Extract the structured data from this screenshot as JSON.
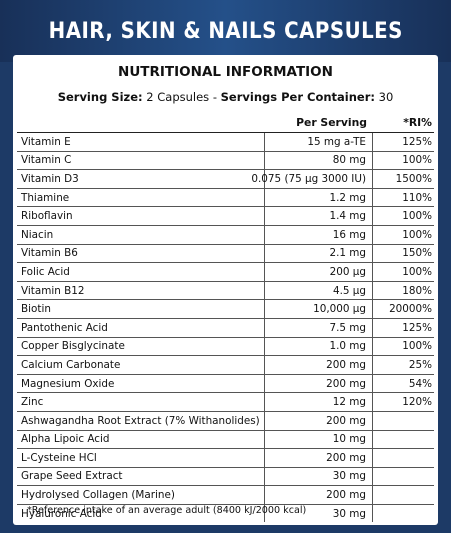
{
  "header": {
    "title": "HAIR, SKIN & NAILS CAPSULES"
  },
  "panel": {
    "title": "NUTRITIONAL INFORMATION",
    "serving": {
      "size_label": "Serving Size:",
      "size_value": " 2 Capsules - ",
      "per_container_label": "Servings Per Container:",
      "per_container_value": " 30"
    },
    "columns": {
      "name": "",
      "per_serving": "Per Serving",
      "ri": "*RI%"
    },
    "rows": [
      {
        "name": "Vitamin E",
        "value": "15 mg a-TE",
        "ri": "125%"
      },
      {
        "name": "Vitamin C",
        "value": "80 mg",
        "ri": "100%"
      },
      {
        "name": "Vitamin D3",
        "value": "0.075 (75 µg 3000 IU)",
        "ri": "1500%"
      },
      {
        "name": "Thiamine",
        "value": "1.2 mg",
        "ri": "110%"
      },
      {
        "name": "Riboflavin",
        "value": "1.4 mg",
        "ri": "100%"
      },
      {
        "name": "Niacin",
        "value": "16 mg",
        "ri": "100%"
      },
      {
        "name": "Vitamin B6",
        "value": "2.1 mg",
        "ri": "150%"
      },
      {
        "name": "Folic Acid",
        "value": "200 µg",
        "ri": "100%"
      },
      {
        "name": "Vitamin B12",
        "value": "4.5 µg",
        "ri": "180%"
      },
      {
        "name": "Biotin",
        "value": "10,000 µg",
        "ri": "20000%"
      },
      {
        "name": "Pantothenic Acid",
        "value": "7.5 mg",
        "ri": "125%"
      },
      {
        "name": "Copper Bisglycinate",
        "value": "1.0 mg",
        "ri": "100%"
      },
      {
        "name": "Calcium Carbonate",
        "value": "200 mg",
        "ri": "25%"
      },
      {
        "name": "Magnesium Oxide",
        "value": "200 mg",
        "ri": "54%"
      },
      {
        "name": "Zinc",
        "value": "12 mg",
        "ri": "120%"
      },
      {
        "name": "Ashwagandha Root Extract (7% Withanolides)",
        "value": "200 mg",
        "ri": ""
      },
      {
        "name": "Alpha Lipoic Acid",
        "value": "10 mg",
        "ri": ""
      },
      {
        "name": "L-Cysteine HCl",
        "value": "200 mg",
        "ri": ""
      },
      {
        "name": "Grape Seed Extract",
        "value": "30 mg",
        "ri": ""
      },
      {
        "name": "Hydrolysed Collagen (Marine)",
        "value": "200 mg",
        "ri": ""
      },
      {
        "name": "Hyaluronic Acid",
        "value": "30 mg",
        "ri": ""
      }
    ],
    "footnote": "*Reference intake of an average adult (8400 kJ/2000 kcal)"
  }
}
